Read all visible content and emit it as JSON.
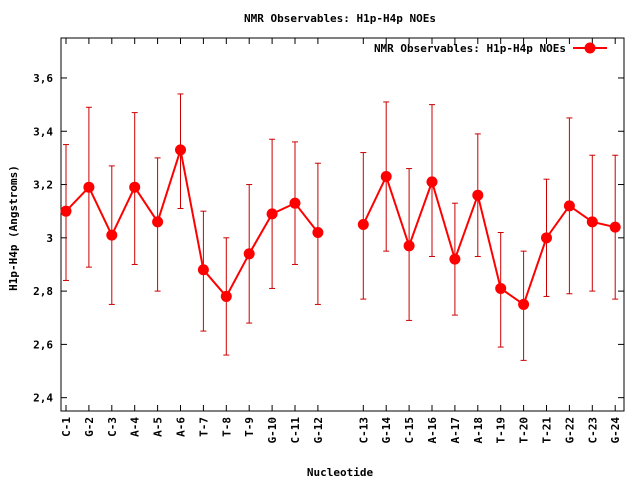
{
  "chart_data": {
    "type": "line",
    "title": "NMR Observables: H1p-H4p NOEs",
    "xlabel": "Nucleotide",
    "ylabel": "H1p-H4p (Angstroms)",
    "ylim": [
      2.35,
      3.75
    ],
    "y_ticks": [
      2.4,
      2.6,
      2.8,
      3,
      3.2,
      3.4,
      3.6
    ],
    "y_tick_labels": [
      "2,4",
      "2,6",
      "2,8",
      "3",
      "3,2",
      "3,4",
      "3,6"
    ],
    "legend_position": "top-right",
    "grid": false,
    "color": "#ff0000",
    "errorbar_color": "#cc0000",
    "categories": [
      "C-1",
      "G-2",
      "C-3",
      "A-4",
      "A-5",
      "A-6",
      "T-7",
      "T-8",
      "T-9",
      "G-10",
      "C-11",
      "G-12",
      "C-13",
      "G-14",
      "C-15",
      "A-16",
      "A-17",
      "A-18",
      "T-19",
      "T-20",
      "T-21",
      "G-22",
      "C-23",
      "G-24"
    ],
    "series": [
      {
        "name": "NMR Observables: H1p-H4p NOEs",
        "segments": [
          [
            0,
            11
          ],
          [
            12,
            23
          ]
        ],
        "values": [
          3.1,
          3.19,
          3.01,
          3.19,
          3.06,
          3.33,
          2.88,
          2.78,
          2.94,
          3.09,
          3.13,
          3.02,
          3.05,
          3.23,
          2.97,
          3.21,
          2.92,
          3.16,
          2.81,
          2.75,
          3.0,
          3.12,
          3.06,
          3.04
        ],
        "err_low": [
          2.84,
          2.89,
          2.75,
          2.9,
          2.8,
          3.11,
          2.65,
          2.56,
          2.68,
          2.81,
          2.9,
          2.75,
          2.77,
          2.95,
          2.69,
          2.93,
          2.71,
          2.93,
          2.59,
          2.54,
          2.78,
          2.79,
          2.8,
          2.77
        ],
        "err_high": [
          3.35,
          3.49,
          3.27,
          3.47,
          3.3,
          3.54,
          3.1,
          3.0,
          3.2,
          3.37,
          3.36,
          3.28,
          3.32,
          3.51,
          3.26,
          3.5,
          3.13,
          3.39,
          3.02,
          2.95,
          3.22,
          3.45,
          3.31,
          3.31
        ]
      }
    ]
  }
}
